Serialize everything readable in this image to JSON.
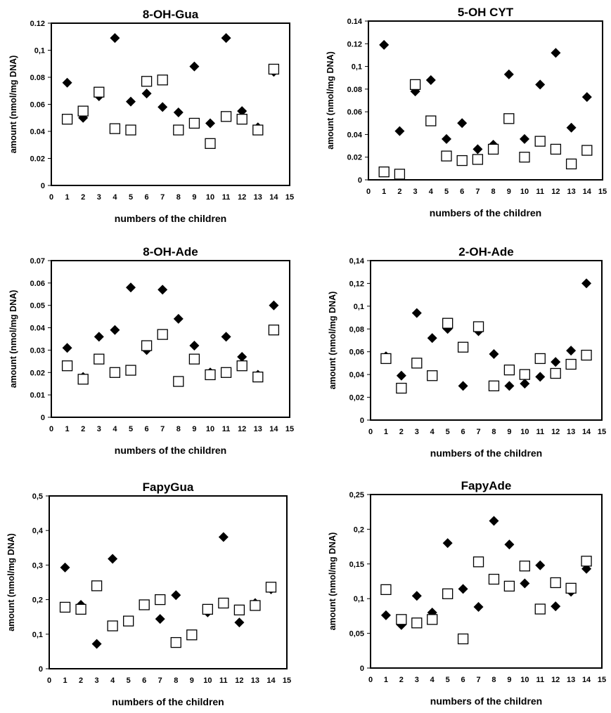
{
  "chart_data": [
    {
      "type": "scatter",
      "title": "8-OH-Gua",
      "xlabel": "numbers of the children",
      "ylabel": "amount (nmol/mg DNA)",
      "xlim": [
        0,
        15
      ],
      "ylim": [
        0,
        0.12
      ],
      "xticks": [
        0,
        1,
        2,
        3,
        4,
        5,
        6,
        7,
        8,
        9,
        10,
        11,
        12,
        13,
        14,
        15
      ],
      "xtick_labels": [
        "0",
        "1",
        "2",
        "3",
        "4",
        "5",
        "6",
        "7",
        "8",
        "9",
        "10",
        "11",
        "12",
        "13",
        "14",
        "15"
      ],
      "yticks": [
        0,
        0.02,
        0.04,
        0.06,
        0.08,
        0.1,
        0.12
      ],
      "ytick_labels": [
        "0",
        "0.02",
        "0.04",
        "0.06",
        "0.08",
        "0,1",
        "0.12"
      ],
      "grid": false,
      "series": [
        {
          "marker": "diamond-filled",
          "x": [
            1,
            2,
            3,
            4,
            5,
            6,
            7,
            8,
            9,
            10,
            11,
            12,
            13,
            14
          ],
          "y": [
            0.076,
            0.05,
            0.066,
            0.109,
            0.062,
            0.068,
            0.058,
            0.054,
            0.088,
            0.046,
            0.109,
            0.055,
            0.043,
            0.084
          ]
        },
        {
          "marker": "square-open",
          "x": [
            1,
            2,
            3,
            4,
            5,
            6,
            7,
            8,
            9,
            10,
            11,
            12,
            13,
            14
          ],
          "y": [
            0.049,
            0.055,
            0.069,
            0.042,
            0.041,
            0.077,
            0.078,
            0.041,
            0.046,
            0.031,
            0.051,
            0.049,
            0.041,
            0.086
          ]
        }
      ]
    },
    {
      "type": "scatter",
      "title": "5-OH CYT",
      "xlabel": "numbers of the children",
      "ylabel": "amount (nmol/mg DNA)",
      "xlim": [
        0,
        15
      ],
      "ylim": [
        0,
        0.14
      ],
      "xticks": [
        0,
        1,
        2,
        3,
        4,
        5,
        6,
        7,
        8,
        9,
        10,
        11,
        12,
        13,
        14,
        15
      ],
      "xtick_labels": [
        "0",
        "1",
        "2",
        "3",
        "4",
        "5",
        "6",
        "7",
        "8",
        "9",
        "10",
        "11",
        "12",
        "13",
        "14",
        "15"
      ],
      "yticks": [
        0,
        0.02,
        0.04,
        0.06,
        0.08,
        0.1,
        0.12,
        0.14
      ],
      "ytick_labels": [
        "0",
        "0.02",
        "0.04",
        "0.06",
        "0.08",
        "0,1",
        "0.12",
        "0.14"
      ],
      "grid": false,
      "series": [
        {
          "marker": "diamond-filled",
          "x": [
            1,
            2,
            3,
            4,
            5,
            6,
            7,
            8,
            9,
            10,
            11,
            12,
            13,
            14
          ],
          "y": [
            0.119,
            0.043,
            0.078,
            0.088,
            0.036,
            0.05,
            0.027,
            0.031,
            0.093,
            0.036,
            0.084,
            0.112,
            0.046,
            0.073
          ]
        },
        {
          "marker": "square-open",
          "x": [
            1,
            2,
            3,
            4,
            5,
            6,
            7,
            8,
            9,
            10,
            11,
            12,
            13,
            14
          ],
          "y": [
            0.007,
            0.005,
            0.084,
            0.052,
            0.021,
            0.017,
            0.018,
            0.027,
            0.054,
            0.02,
            0.034,
            0.027,
            0.014,
            0.026
          ]
        }
      ]
    },
    {
      "type": "scatter",
      "title": "8-OH-Ade",
      "xlabel": "numbers of the children",
      "ylabel": "amount (nmol/mg DNA)",
      "xlim": [
        0,
        15
      ],
      "ylim": [
        0,
        0.07
      ],
      "xticks": [
        0,
        1,
        2,
        3,
        4,
        5,
        6,
        7,
        8,
        9,
        10,
        11,
        12,
        13,
        14,
        15
      ],
      "xtick_labels": [
        "0",
        "1",
        "2",
        "3",
        "4",
        "5",
        "6",
        "7",
        "8",
        "9",
        "10",
        "11",
        "12",
        "13",
        "14",
        "15"
      ],
      "yticks": [
        0,
        0.01,
        0.02,
        0.03,
        0.04,
        0.05,
        0.06,
        0.07
      ],
      "ytick_labels": [
        "0",
        "0.01",
        "0.02",
        "0.03",
        "0.04",
        "0.05",
        "0.06",
        "0.07"
      ],
      "grid": false,
      "series": [
        {
          "marker": "diamond-filled",
          "x": [
            1,
            2,
            3,
            4,
            5,
            6,
            7,
            8,
            9,
            10,
            11,
            12,
            13,
            14
          ],
          "y": [
            0.031,
            0.018,
            0.036,
            0.039,
            0.058,
            0.03,
            0.057,
            0.044,
            0.032,
            0.02,
            0.036,
            0.027,
            0.019,
            0.05
          ]
        },
        {
          "marker": "square-open",
          "x": [
            1,
            2,
            3,
            4,
            5,
            6,
            7,
            8,
            9,
            10,
            11,
            12,
            13,
            14
          ],
          "y": [
            0.023,
            0.017,
            0.026,
            0.02,
            0.021,
            0.032,
            0.037,
            0.016,
            0.026,
            0.019,
            0.02,
            0.023,
            0.018,
            0.039
          ]
        }
      ]
    },
    {
      "type": "scatter",
      "title": "2-OH-Ade",
      "xlabel": "numbers of the children",
      "ylabel": "amount (nmol/mg DNA)",
      "xlim": [
        0,
        15
      ],
      "ylim": [
        0,
        0.14
      ],
      "xticks": [
        0,
        1,
        2,
        3,
        4,
        5,
        6,
        7,
        8,
        9,
        10,
        11,
        12,
        13,
        14,
        15
      ],
      "xtick_labels": [
        "0",
        "1",
        "2",
        "3",
        "4",
        "5",
        "6",
        "7",
        "8",
        "9",
        "10",
        "11",
        "12",
        "13",
        "14",
        "15"
      ],
      "yticks": [
        0,
        0.02,
        0.04,
        0.06,
        0.08,
        0.1,
        0.12,
        0.14
      ],
      "ytick_labels": [
        "0",
        "0,02",
        "0,04",
        "0,06",
        "0,08",
        "0,1",
        "0,12",
        "0,14"
      ],
      "grid": false,
      "series": [
        {
          "marker": "diamond-filled",
          "x": [
            1,
            2,
            3,
            4,
            5,
            6,
            7,
            8,
            9,
            10,
            11,
            12,
            13,
            14
          ],
          "y": [
            0.056,
            0.039,
            0.094,
            0.072,
            0.08,
            0.03,
            0.078,
            0.058,
            0.03,
            0.032,
            0.038,
            0.051,
            0.061,
            0.12
          ]
        },
        {
          "marker": "square-open",
          "x": [
            1,
            2,
            3,
            4,
            5,
            6,
            7,
            8,
            9,
            10,
            11,
            12,
            13,
            14
          ],
          "y": [
            0.054,
            0.028,
            0.05,
            0.039,
            0.085,
            0.064,
            0.082,
            0.03,
            0.044,
            0.04,
            0.054,
            0.041,
            0.049,
            0.057
          ]
        }
      ]
    },
    {
      "type": "scatter",
      "title": "FapyGua",
      "xlabel": "numbers of the children",
      "ylabel": "amount (nmol/mg DNA)",
      "xlim": [
        0,
        15
      ],
      "ylim": [
        0,
        0.5
      ],
      "xticks": [
        0,
        1,
        2,
        3,
        4,
        5,
        6,
        7,
        8,
        9,
        10,
        11,
        12,
        13,
        14,
        15
      ],
      "xtick_labels": [
        "0",
        "1",
        "2",
        "3",
        "4",
        "5",
        "6",
        "7",
        "8",
        "9",
        "10",
        "11",
        "12",
        "13",
        "14",
        "15"
      ],
      "yticks": [
        0,
        0.1,
        0.2,
        0.3,
        0.4,
        0.5
      ],
      "ytick_labels": [
        "0",
        "0,1",
        "0,2",
        "0,3",
        "0,4",
        "0,5"
      ],
      "grid": false,
      "series": [
        {
          "marker": "diamond-filled",
          "x": [
            1,
            2,
            3,
            4,
            5,
            6,
            7,
            8,
            9,
            10,
            11,
            12,
            13,
            14
          ],
          "y": [
            0.293,
            0.185,
            0.072,
            0.318,
            0.138,
            0.185,
            0.144,
            0.213,
            0.098,
            0.163,
            0.381,
            0.134,
            0.19,
            0.23
          ]
        },
        {
          "marker": "square-open",
          "x": [
            1,
            2,
            3,
            4,
            5,
            6,
            7,
            8,
            9,
            10,
            11,
            12,
            13,
            14
          ],
          "y": [
            0.178,
            0.172,
            0.24,
            0.124,
            0.138,
            0.185,
            0.2,
            0.076,
            0.098,
            0.172,
            0.19,
            0.17,
            0.183,
            0.236
          ]
        }
      ]
    },
    {
      "type": "scatter",
      "title": "FapyAde",
      "xlabel": "numbers of the children",
      "ylabel": "amount (nmol/mg DNA)",
      "xlim": [
        0,
        15
      ],
      "ylim": [
        0,
        0.25
      ],
      "xticks": [
        0,
        1,
        2,
        3,
        4,
        5,
        6,
        7,
        8,
        9,
        10,
        11,
        12,
        13,
        14,
        15
      ],
      "xtick_labels": [
        "0",
        "1",
        "2",
        "3",
        "4",
        "5",
        "6",
        "7",
        "8",
        "9",
        "10",
        "11",
        "12",
        "13",
        "14",
        "15"
      ],
      "yticks": [
        0,
        0.05,
        0.1,
        0.15,
        0.2,
        0.25
      ],
      "ytick_labels": [
        "0",
        "0,05",
        "0,1",
        "0,15",
        "0,2",
        "0,25"
      ],
      "grid": false,
      "series": [
        {
          "marker": "diamond-filled",
          "x": [
            1,
            2,
            3,
            4,
            5,
            6,
            7,
            8,
            9,
            10,
            11,
            12,
            13,
            14
          ],
          "y": [
            0.076,
            0.062,
            0.104,
            0.08,
            0.18,
            0.114,
            0.088,
            0.212,
            0.178,
            0.122,
            0.148,
            0.089,
            0.11,
            0.143
          ]
        },
        {
          "marker": "square-open",
          "x": [
            1,
            2,
            3,
            4,
            5,
            6,
            7,
            8,
            9,
            10,
            11,
            12,
            13,
            14
          ],
          "y": [
            0.113,
            0.07,
            0.065,
            0.07,
            0.107,
            0.042,
            0.153,
            0.128,
            0.118,
            0.147,
            0.085,
            0.123,
            0.115,
            0.154
          ]
        }
      ]
    }
  ]
}
